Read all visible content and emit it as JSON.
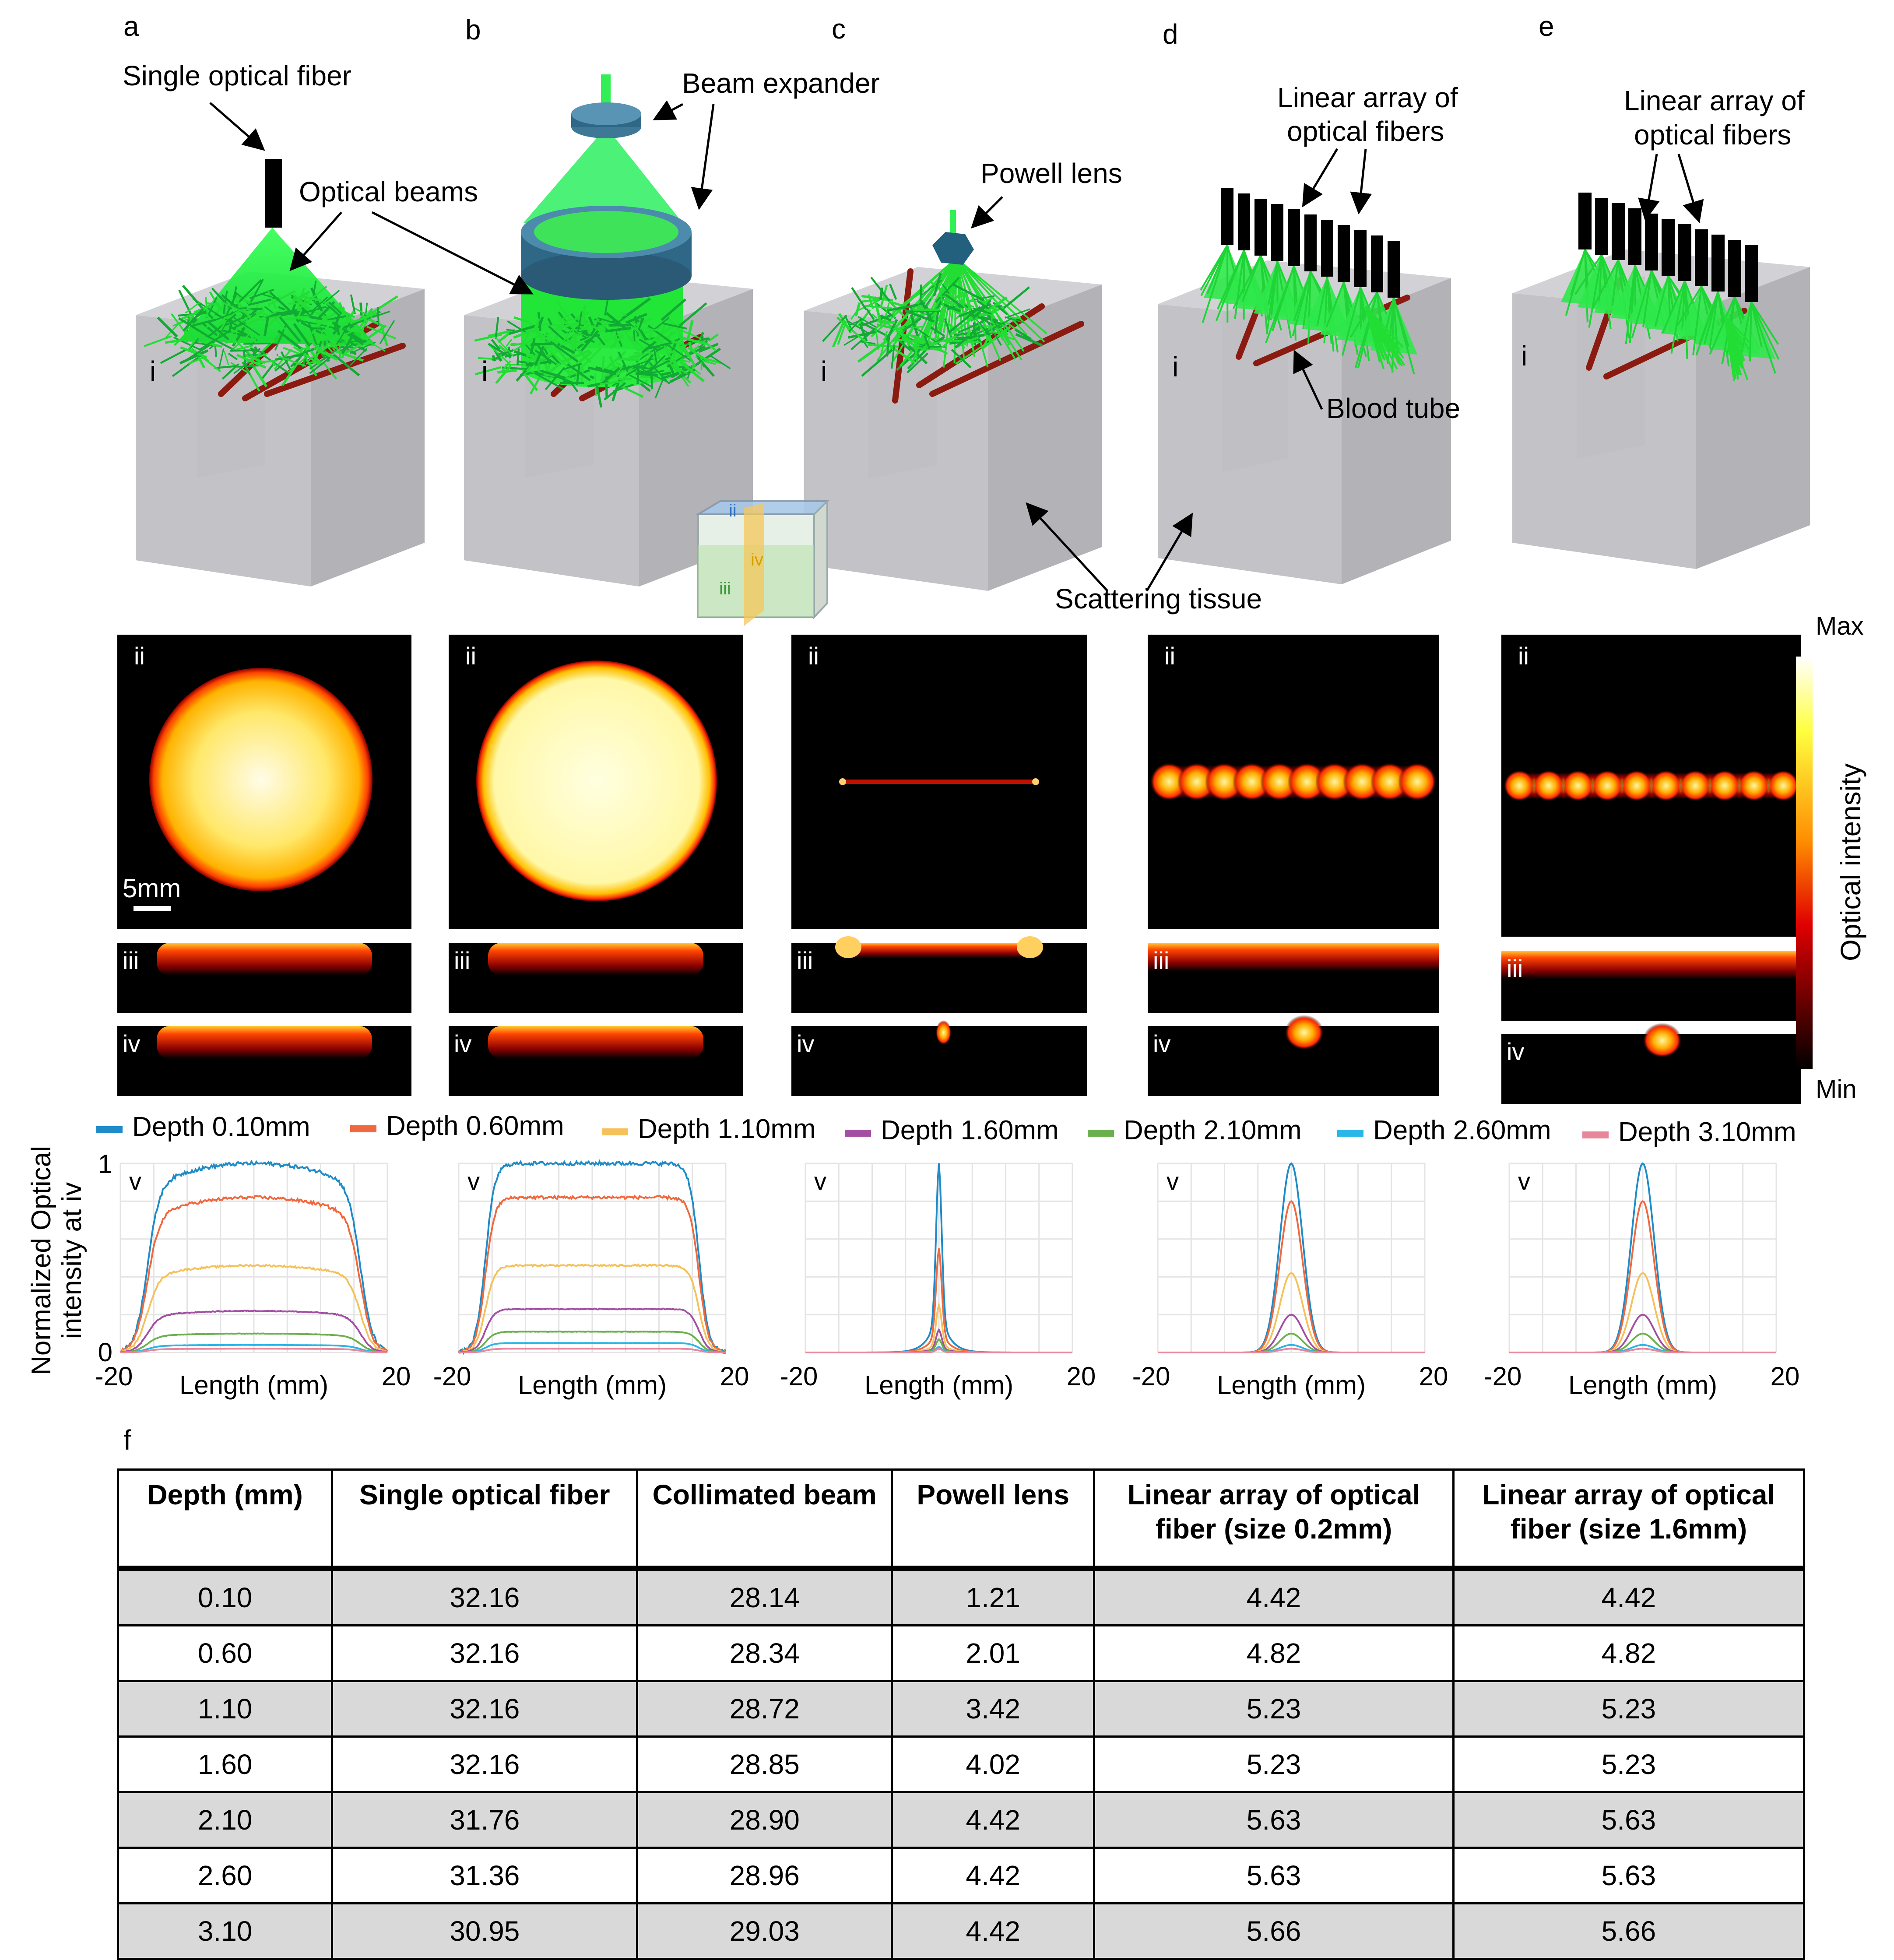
{
  "panels": [
    {
      "letter": "a",
      "mode": "fiber"
    },
    {
      "letter": "b",
      "mode": "expander"
    },
    {
      "letter": "c",
      "mode": "powell"
    },
    {
      "letter": "d",
      "mode": "array"
    },
    {
      "letter": "e",
      "mode": "array"
    }
  ],
  "roman": {
    "i": "i",
    "ii": "ii",
    "iii": "iii",
    "iv": "iv",
    "v": "v"
  },
  "labels": {
    "single_fiber": "Single optical fiber",
    "optical_beams": "Optical beams",
    "beam_expander": "Beam expander",
    "powell_lens": "Powell lens",
    "linear_array_d": [
      "Linear array of",
      "optical fibers"
    ],
    "linear_array_e": [
      "Linear array of",
      "optical fibers"
    ],
    "blood_tube": "Blood tube",
    "scattering_tissue": "Scattering tissue",
    "scale_bar": "5mm"
  },
  "colorbar": {
    "max": "Max",
    "min": "Min",
    "label": "Optical intensity"
  },
  "legend": [
    "Depth 0.10mm",
    "Depth 0.60mm",
    "Depth 1.10mm",
    "Depth 1.60mm",
    "Depth 2.10mm",
    "Depth 2.60mm",
    "Depth 3.10mm"
  ],
  "colors": {
    "series": [
      "#1f8bc8",
      "#f0683e",
      "#f5c15a",
      "#a34ea3",
      "#6ab04c",
      "#29b6e8",
      "#e8869c"
    ],
    "tissue": "#c8c8cc",
    "beam": "#22ee22",
    "blood": "#8b1a10",
    "lens": "#2a6f95",
    "table_shade": "#d9d9d9"
  },
  "chart_data": [
    {
      "type": "line",
      "panel": "a",
      "profile": "broad",
      "x": [
        -20,
        20
      ],
      "xlabel": "Length (mm)",
      "ylabel": [
        "Normalized Optical",
        "intensity at iv"
      ],
      "ylim": [
        0,
        1
      ],
      "xlim": [
        -20,
        20
      ],
      "y_ticks": [
        "0",
        "1"
      ],
      "x_ticks": [
        "-20",
        "20"
      ],
      "peaks": [
        1.0,
        0.82,
        0.46,
        0.22,
        0.1,
        0.04,
        0.02
      ],
      "grid": true
    },
    {
      "type": "line",
      "panel": "b",
      "profile": "flat",
      "x": [
        -20,
        20
      ],
      "xlabel": "Length (mm)",
      "ylim": [
        0,
        1
      ],
      "xlim": [
        -20,
        20
      ],
      "x_ticks": [
        "-20",
        "20"
      ],
      "peaks": [
        1.0,
        0.82,
        0.46,
        0.23,
        0.11,
        0.05,
        0.02
      ],
      "grid": true
    },
    {
      "type": "line",
      "panel": "c",
      "profile": "narrow",
      "x": [
        -20,
        20
      ],
      "xlabel": "Length (mm)",
      "ylim": [
        0,
        1
      ],
      "xlim": [
        -20,
        20
      ],
      "x_ticks": [
        "-20",
        "20"
      ],
      "peaks": [
        1.0,
        0.55,
        0.25,
        0.12,
        0.07,
        0.03,
        0.02
      ],
      "grid": true
    },
    {
      "type": "line",
      "panel": "d",
      "profile": "medium",
      "x": [
        -20,
        20
      ],
      "xlabel": "Length (mm)",
      "ylim": [
        0,
        1
      ],
      "xlim": [
        -20,
        20
      ],
      "x_ticks": [
        "-20",
        "20"
      ],
      "peaks": [
        1.0,
        0.8,
        0.42,
        0.2,
        0.1,
        0.04,
        0.02
      ],
      "grid": true
    },
    {
      "type": "line",
      "panel": "e",
      "profile": "medium",
      "x": [
        -20,
        20
      ],
      "xlabel": "Length (mm)",
      "ylim": [
        0,
        1
      ],
      "xlim": [
        -20,
        20
      ],
      "x_ticks": [
        "-20",
        "20"
      ],
      "peaks": [
        1.0,
        0.8,
        0.42,
        0.2,
        0.1,
        0.04,
        0.02
      ],
      "grid": true
    }
  ],
  "table": {
    "label": "f",
    "headers": [
      "Depth (mm)",
      "Single optical fiber",
      "Collimated beam",
      "Powell lens",
      "Linear array of optical fiber (size 0.2mm)",
      "Linear array of optical fiber (size 1.6mm)"
    ],
    "rows": [
      [
        "0.10",
        "32.16",
        "28.14",
        "1.21",
        "4.42",
        "4.42"
      ],
      [
        "0.60",
        "32.16",
        "28.34",
        "2.01",
        "4.82",
        "4.82"
      ],
      [
        "1.10",
        "32.16",
        "28.72",
        "3.42",
        "5.23",
        "5.23"
      ],
      [
        "1.60",
        "32.16",
        "28.85",
        "4.02",
        "5.23",
        "5.23"
      ],
      [
        "2.10",
        "31.76",
        "28.90",
        "4.42",
        "5.63",
        "5.63"
      ],
      [
        "2.60",
        "31.36",
        "28.96",
        "4.42",
        "5.63",
        "5.63"
      ],
      [
        "3.10",
        "30.95",
        "29.03",
        "4.42",
        "5.66",
        "5.66"
      ]
    ]
  }
}
